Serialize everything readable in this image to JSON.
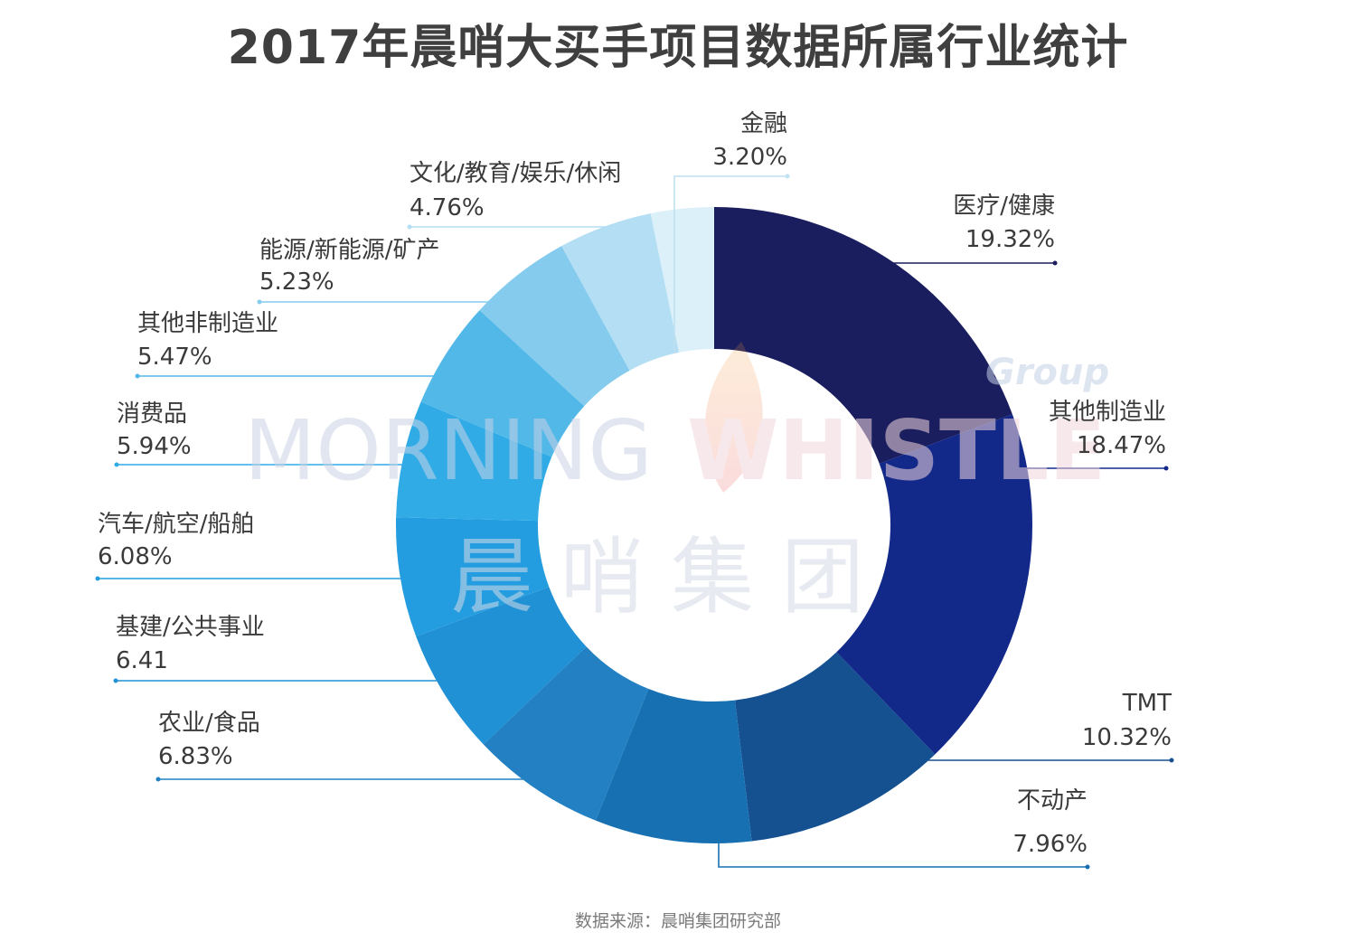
{
  "title": "2017年晨哨大买手项目数据所属行业统计",
  "source": "数据来源：晨哨集团研究部",
  "watermark": {
    "line1_left": "MORNING",
    "line1_right": "WHISTLE",
    "line2": "晨哨集团",
    "tag": "Group"
  },
  "chart_data": {
    "type": "pie",
    "title": "2017年晨哨大买手项目数据所属行业统计",
    "donut": true,
    "slices": [
      {
        "name": "医疗/健康",
        "value": 19.32,
        "value_label": "19.32%",
        "color": "#1a1d5e"
      },
      {
        "name": "其他制造业",
        "value": 18.47,
        "value_label": "18.47%",
        "color": "#13298a"
      },
      {
        "name": "TMT",
        "value": 10.32,
        "value_label": "10.32%",
        "color": "#155191"
      },
      {
        "name": "不动产",
        "value": 7.96,
        "value_label": "7.96%",
        "color": "#1670b2"
      },
      {
        "name": "农业/食品",
        "value": 6.83,
        "value_label": "6.83%",
        "color": "#2280c3"
      },
      {
        "name": "基建/公共事业",
        "value": 6.41,
        "value_label": "6.41",
        "color": "#2091d4"
      },
      {
        "name": "汽车/航空/船舶",
        "value": 6.08,
        "value_label": "6.08%",
        "color": "#249de0"
      },
      {
        "name": "消费品",
        "value": 5.94,
        "value_label": "5.94%",
        "color": "#30abe6"
      },
      {
        "name": "其他非制造业",
        "value": 5.47,
        "value_label": "5.47%",
        "color": "#52b8e8"
      },
      {
        "name": "能源/新能源/矿产",
        "value": 5.23,
        "value_label": "5.23%",
        "color": "#84cbee"
      },
      {
        "name": "文化/教育/娱乐/休闲",
        "value": 4.76,
        "value_label": "4.76%",
        "color": "#b3def3"
      },
      {
        "name": "金融",
        "value": 3.2,
        "value_label": "3.20%",
        "color": "#dcf0f9"
      }
    ]
  }
}
